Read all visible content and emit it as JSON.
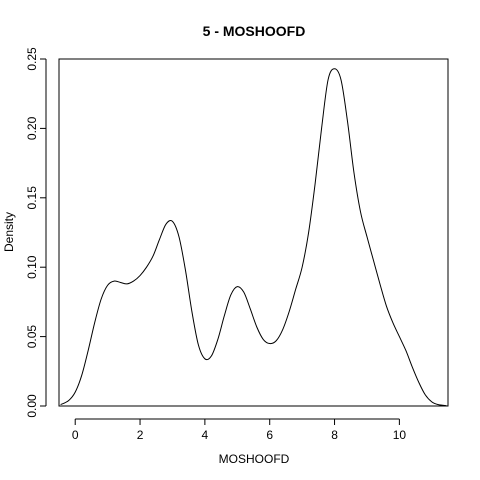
{
  "chart_data": {
    "type": "line",
    "title": "5 - MOSHOOFD",
    "xlabel": "MOSHOOFD",
    "ylabel": "Density",
    "xlim": [
      -0.5,
      11.5
    ],
    "ylim": [
      0,
      0.25
    ],
    "x_ticks": [
      0,
      2,
      4,
      6,
      8,
      10
    ],
    "y_ticks": [
      0.0,
      0.05,
      0.1,
      0.15,
      0.2,
      0.25
    ],
    "x_tick_labels": [
      "0",
      "2",
      "4",
      "6",
      "8",
      "10"
    ],
    "y_tick_labels": [
      "0.00",
      "0.05",
      "0.10",
      "0.15",
      "0.20",
      "0.25"
    ],
    "grid": false,
    "series": [
      {
        "name": "density",
        "x": [
          -0.45,
          -0.2,
          0,
          0.2,
          0.4,
          0.6,
          0.8,
          1.0,
          1.2,
          1.4,
          1.6,
          1.8,
          2.0,
          2.2,
          2.4,
          2.6,
          2.8,
          3.0,
          3.2,
          3.4,
          3.6,
          3.8,
          4.0,
          4.2,
          4.4,
          4.6,
          4.8,
          5.0,
          5.2,
          5.4,
          5.6,
          5.8,
          6.0,
          6.2,
          6.4,
          6.6,
          6.8,
          7.0,
          7.2,
          7.4,
          7.6,
          7.8,
          8.0,
          8.2,
          8.4,
          8.6,
          8.8,
          9.0,
          9.2,
          9.4,
          9.6,
          9.8,
          10.0,
          10.2,
          10.4,
          10.6,
          10.8,
          11.0,
          11.2,
          11.45
        ],
        "values": [
          0.001,
          0.004,
          0.01,
          0.022,
          0.04,
          0.06,
          0.077,
          0.087,
          0.09,
          0.089,
          0.088,
          0.09,
          0.094,
          0.1,
          0.108,
          0.12,
          0.131,
          0.133,
          0.122,
          0.098,
          0.068,
          0.044,
          0.034,
          0.036,
          0.048,
          0.065,
          0.08,
          0.086,
          0.082,
          0.07,
          0.057,
          0.048,
          0.045,
          0.047,
          0.055,
          0.068,
          0.084,
          0.1,
          0.125,
          0.16,
          0.2,
          0.235,
          0.243,
          0.235,
          0.205,
          0.168,
          0.14,
          0.122,
          0.105,
          0.088,
          0.072,
          0.06,
          0.05,
          0.04,
          0.028,
          0.017,
          0.008,
          0.003,
          0.001,
          0.0003
        ]
      }
    ]
  }
}
